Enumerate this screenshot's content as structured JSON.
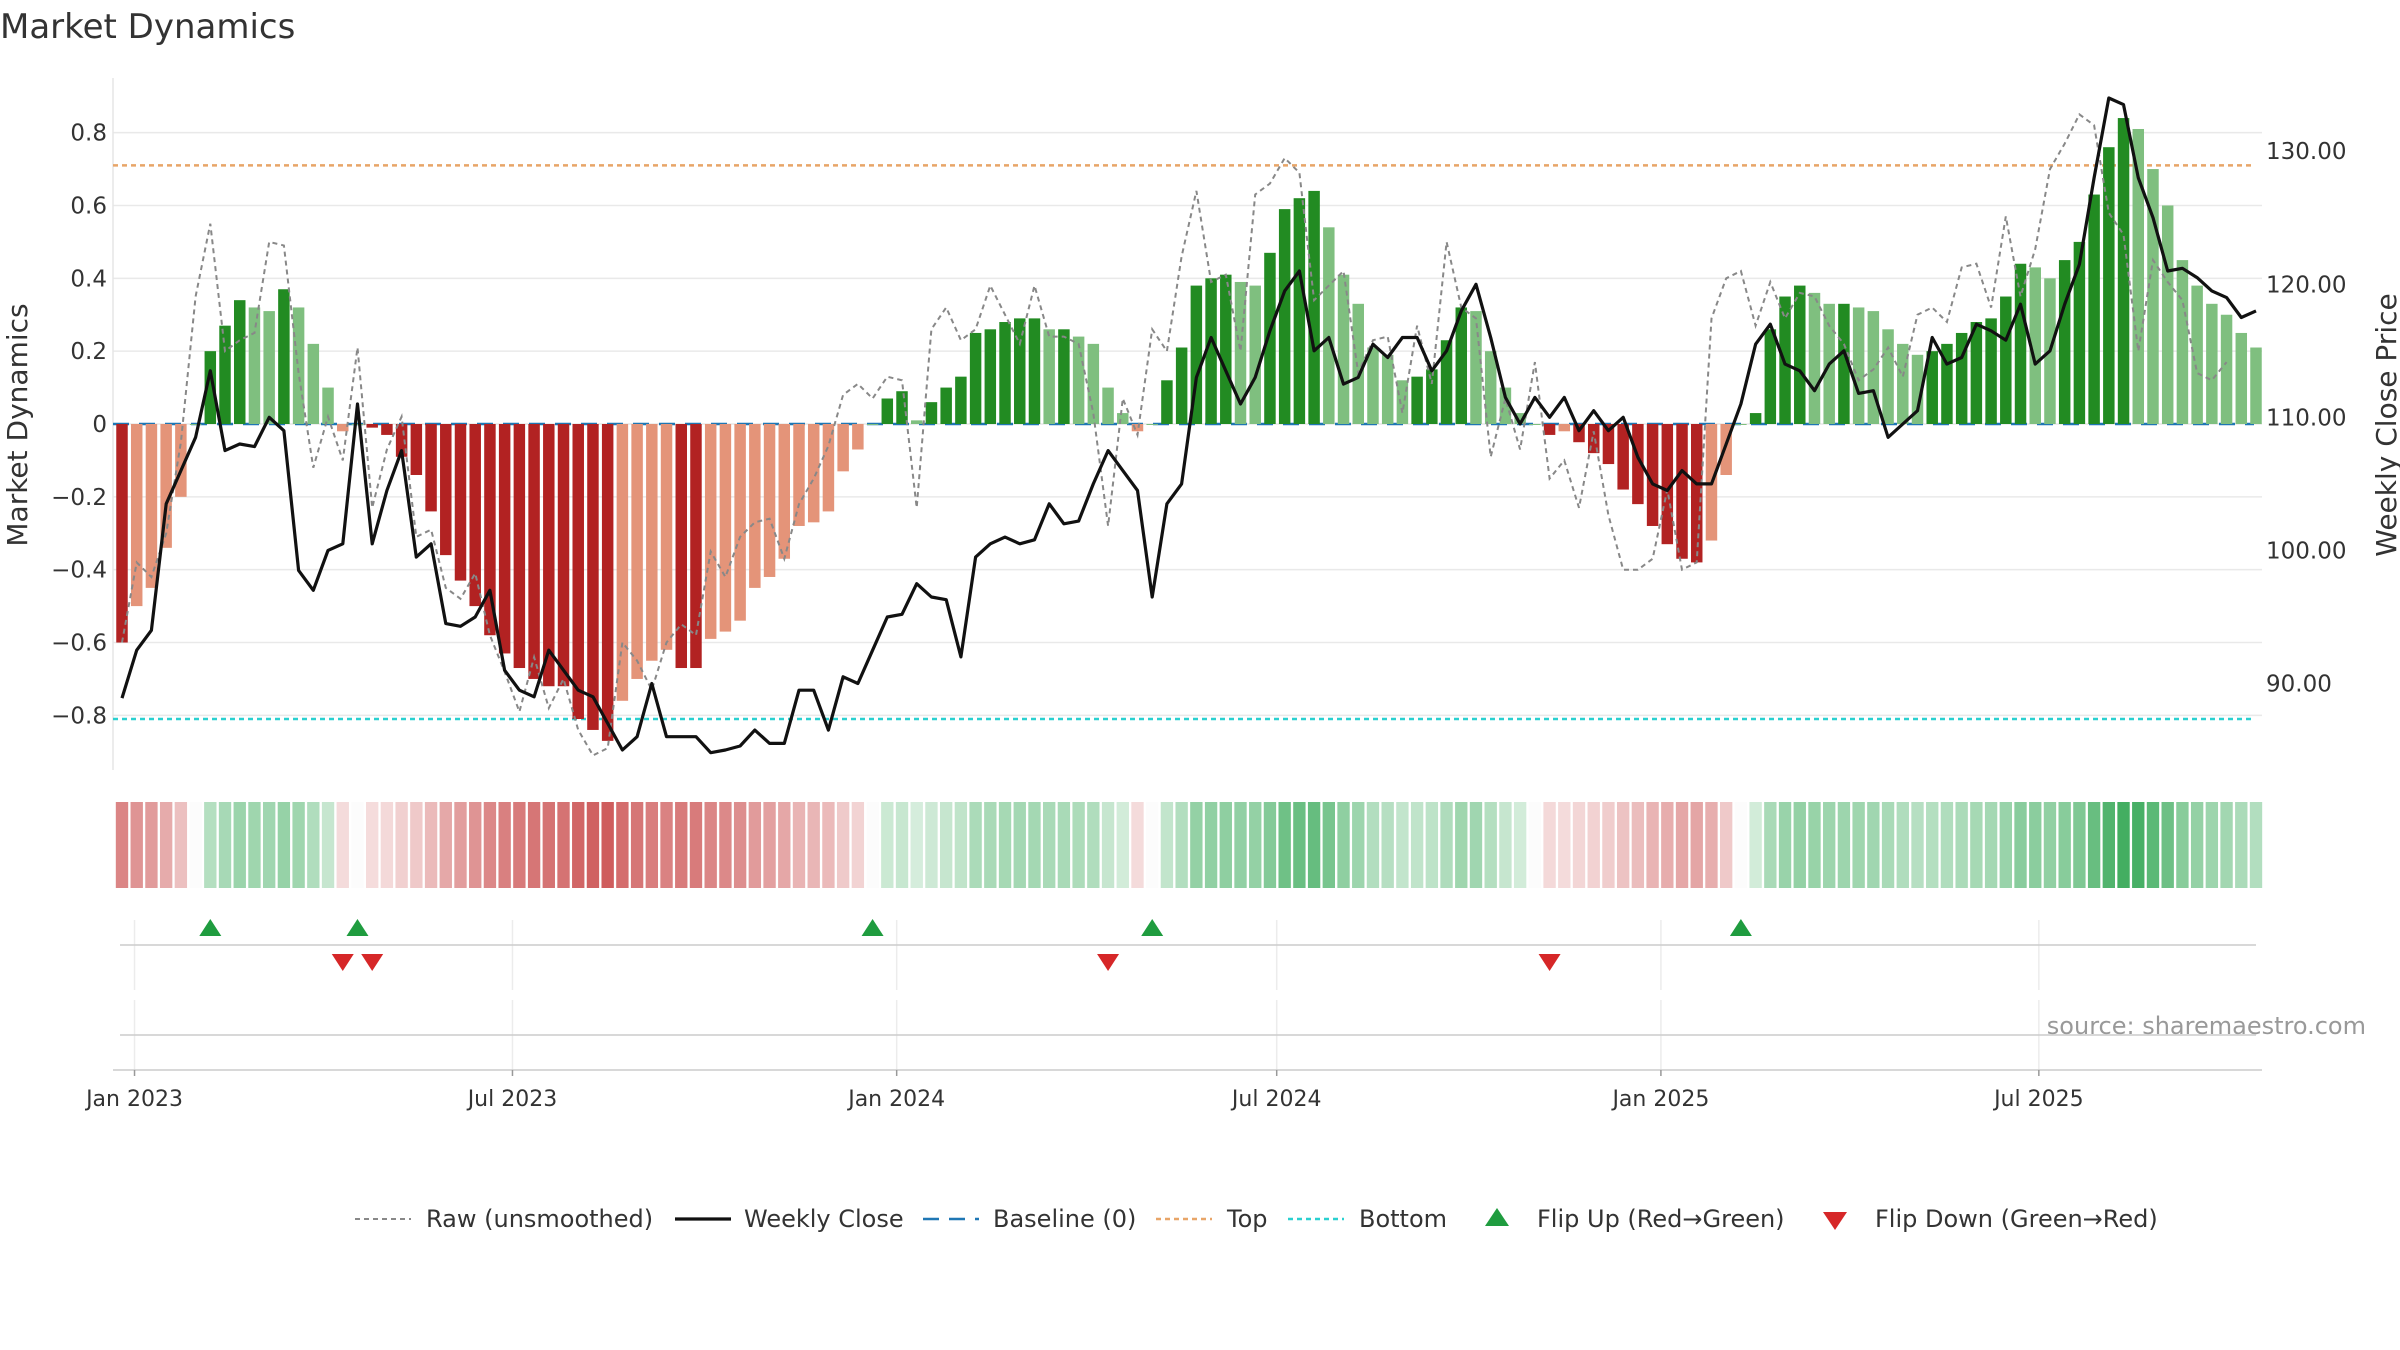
{
  "chart_data": {
    "type": "bar",
    "title": "Market Dynamics",
    "ylabel_left": "Market Dynamics",
    "ylabel_right": "Weekly Close Price",
    "source": "source: sharemaestro.com",
    "ylim_left": [
      -0.95,
      0.95
    ],
    "ylim_right": [
      83.5,
      135.5
    ],
    "yticks_left": [
      0.8,
      0.6,
      0.4,
      0.2,
      0,
      -0.2,
      -0.4,
      -0.6,
      -0.8
    ],
    "yticks_left_labels": [
      "0.8",
      "0.6",
      "0.4",
      "0.2",
      "0",
      "−0.2",
      "−0.4",
      "−0.6",
      "−0.8"
    ],
    "yticks_right": [
      130,
      120,
      110,
      100,
      90
    ],
    "yticks_right_labels": [
      "130.00",
      "120.00",
      "110.00",
      "100.00",
      "90.00"
    ],
    "x_start": "2022-12-26",
    "x_end": "2025-10-13",
    "xticks": [
      {
        "date": "2023-01-01",
        "label": "Jan 2023"
      },
      {
        "date": "2023-07-01",
        "label": "Jul 2023"
      },
      {
        "date": "2024-01-01",
        "label": "Jan 2024"
      },
      {
        "date": "2024-07-01",
        "label": "Jul 2024"
      },
      {
        "date": "2025-01-01",
        "label": "Jan 2025"
      },
      {
        "date": "2025-07-01",
        "label": "Jul 2025"
      }
    ],
    "top_level": 0.71,
    "bottom_level": -0.81,
    "baseline": 0,
    "bar_color_strong_positive": "#228b22",
    "bar_color_weak_positive": "#7fbf7f",
    "bar_color_strong_negative": "#b22222",
    "bar_color_weak_negative": "#e49479",
    "top_line_color": "#e8a568",
    "bottom_line_color": "#2ad0d0",
    "baseline_color": "#1f77b4",
    "flip_up_color": "#1f9c3f",
    "flip_down_color": "#d62728",
    "smoothed": [
      -0.6,
      -0.5,
      -0.45,
      -0.34,
      -0.2,
      0.0,
      0.2,
      0.27,
      0.34,
      0.32,
      0.31,
      0.37,
      0.32,
      0.22,
      0.1,
      -0.02,
      0.0,
      -0.01,
      -0.03,
      -0.09,
      -0.14,
      -0.24,
      -0.36,
      -0.43,
      -0.5,
      -0.58,
      -0.63,
      -0.67,
      -0.7,
      -0.72,
      -0.72,
      -0.81,
      -0.84,
      -0.87,
      -0.76,
      -0.7,
      -0.65,
      -0.62,
      -0.67,
      -0.67,
      -0.59,
      -0.57,
      -0.54,
      -0.45,
      -0.42,
      -0.37,
      -0.28,
      -0.27,
      -0.24,
      -0.13,
      -0.07,
      0.0,
      0.07,
      0.09,
      0.01,
      0.06,
      0.1,
      0.13,
      0.25,
      0.26,
      0.28,
      0.29,
      0.29,
      0.26,
      0.26,
      0.24,
      0.22,
      0.1,
      0.03,
      -0.02,
      0.0,
      0.12,
      0.21,
      0.38,
      0.4,
      0.41,
      0.39,
      0.38,
      0.47,
      0.59,
      0.62,
      0.64,
      0.54,
      0.41,
      0.33,
      0.21,
      0.19,
      0.12,
      0.13,
      0.15,
      0.23,
      0.32,
      0.31,
      0.2,
      0.1,
      0.03,
      0.0,
      -0.03,
      -0.02,
      -0.05,
      -0.08,
      -0.11,
      -0.18,
      -0.22,
      -0.28,
      -0.33,
      -0.37,
      -0.38,
      -0.32,
      -0.14,
      0.0,
      0.03,
      0.26,
      0.35,
      0.38,
      0.36,
      0.33,
      0.33,
      0.32,
      0.31,
      0.26,
      0.22,
      0.19,
      0.2,
      0.22,
      0.25,
      0.28,
      0.29,
      0.35,
      0.44,
      0.43,
      0.4,
      0.45,
      0.5,
      0.63,
      0.76,
      0.84,
      0.81,
      0.7,
      0.6,
      0.45,
      0.38,
      0.33,
      0.3,
      0.25,
      0.21
    ],
    "raw": [
      -0.6,
      -0.38,
      -0.42,
      -0.3,
      -0.05,
      0.35,
      0.55,
      0.2,
      0.23,
      0.25,
      0.5,
      0.49,
      0.14,
      -0.12,
      0.02,
      -0.1,
      0.21,
      -0.23,
      -0.07,
      0.02,
      -0.31,
      -0.29,
      -0.45,
      -0.48,
      -0.41,
      -0.58,
      -0.68,
      -0.79,
      -0.64,
      -0.78,
      -0.7,
      -0.84,
      -0.91,
      -0.89,
      -0.6,
      -0.65,
      -0.73,
      -0.6,
      -0.55,
      -0.58,
      -0.35,
      -0.42,
      -0.31,
      -0.27,
      -0.26,
      -0.37,
      -0.22,
      -0.15,
      -0.06,
      0.08,
      0.11,
      0.07,
      0.13,
      0.12,
      -0.23,
      0.26,
      0.32,
      0.23,
      0.26,
      0.38,
      0.3,
      0.22,
      0.38,
      0.24,
      0.24,
      0.22,
      0.03,
      -0.28,
      0.07,
      -0.03,
      0.26,
      0.2,
      0.46,
      0.64,
      0.39,
      0.41,
      0.2,
      0.63,
      0.66,
      0.73,
      0.69,
      0.34,
      0.38,
      0.42,
      0.14,
      0.23,
      0.24,
      0.03,
      0.27,
      0.11,
      0.5,
      0.32,
      0.29,
      -0.09,
      0.07,
      -0.07,
      0.17,
      -0.15,
      -0.1,
      -0.23,
      -0.02,
      -0.25,
      -0.4,
      -0.4,
      -0.37,
      -0.18,
      -0.4,
      -0.38,
      0.29,
      0.4,
      0.42,
      0.27,
      0.39,
      0.29,
      0.36,
      0.35,
      0.27,
      0.22,
      0.12,
      0.15,
      0.21,
      0.13,
      0.3,
      0.32,
      0.28,
      0.43,
      0.44,
      0.32,
      0.57,
      0.35,
      0.48,
      0.7,
      0.77,
      0.85,
      0.82,
      0.58,
      0.52,
      0.2,
      0.45,
      0.39,
      0.34,
      0.14,
      0.12,
      0.17
    ],
    "close": [
      88.9,
      92.5,
      94.0,
      103.5,
      106.0,
      108.5,
      113.5,
      107.5,
      108.0,
      107.8,
      110.0,
      109.0,
      98.5,
      97.0,
      100.0,
      100.5,
      111.0,
      100.5,
      104.5,
      107.5,
      99.5,
      100.5,
      94.5,
      94.3,
      95.0,
      97.0,
      91.0,
      89.5,
      89.0,
      92.5,
      91.0,
      89.5,
      89.0,
      87.0,
      85.0,
      86.0,
      90.0,
      86.0,
      86.0,
      86.0,
      84.8,
      85.0,
      85.3,
      86.5,
      85.5,
      85.5,
      89.5,
      89.5,
      86.5,
      90.5,
      90.0,
      92.5,
      95.0,
      95.2,
      97.5,
      96.5,
      96.3,
      92.0,
      99.5,
      100.5,
      101.0,
      100.5,
      100.8,
      103.5,
      102.0,
      102.2,
      105.0,
      107.5,
      106.0,
      104.5,
      96.5,
      103.5,
      105.0,
      113.0,
      116.0,
      113.5,
      111.0,
      113.0,
      116.5,
      119.5,
      121.0,
      115.0,
      116.0,
      112.5,
      113.0,
      115.5,
      114.5,
      116.0,
      116.0,
      113.5,
      115.0,
      118.0,
      120.0,
      116.0,
      111.5,
      109.5,
      111.5,
      110.0,
      111.5,
      109.0,
      110.5,
      109.0,
      110.0,
      107.0,
      105.0,
      104.5,
      106.0,
      105.0,
      105.0,
      108.0,
      111.0,
      115.5,
      117.0,
      114.0,
      113.5,
      112.0,
      114.0,
      115.0,
      111.8,
      112.0,
      108.5,
      109.5,
      110.5,
      116.0,
      114.0,
      114.5,
      117.0,
      116.5,
      115.8,
      118.5,
      114.0,
      115.0,
      118.5,
      121.5,
      128.0,
      134.0,
      133.5,
      128.0,
      125.0,
      121.0,
      121.2,
      120.5,
      119.5,
      119.0,
      117.5,
      118.0
    ],
    "heat_strips": [
      -0.6,
      -0.5,
      -0.45,
      -0.34,
      -0.2,
      0.0,
      0.2,
      0.27,
      0.34,
      0.32,
      0.31,
      0.37,
      0.32,
      0.22,
      0.1,
      -0.02,
      0.0,
      -0.01,
      -0.03,
      -0.09,
      -0.14,
      -0.24,
      -0.36,
      -0.43,
      -0.5,
      -0.58,
      -0.63,
      -0.67,
      -0.7,
      -0.72,
      -0.72,
      -0.81,
      -0.84,
      -0.87,
      -0.76,
      -0.7,
      -0.65,
      -0.62,
      -0.67,
      -0.67,
      -0.59,
      -0.57,
      -0.54,
      -0.45,
      -0.42,
      -0.37,
      -0.28,
      -0.27,
      -0.24,
      -0.13,
      -0.07,
      0.0,
      0.07,
      0.09,
      0.01,
      0.06,
      0.1,
      0.13,
      0.25,
      0.26,
      0.28,
      0.29,
      0.29,
      0.26,
      0.26,
      0.24,
      0.22,
      0.1,
      0.03,
      -0.02,
      0.0,
      0.12,
      0.21,
      0.38,
      0.4,
      0.41,
      0.39,
      0.38,
      0.47,
      0.59,
      0.62,
      0.64,
      0.54,
      0.41,
      0.33,
      0.21,
      0.19,
      0.12,
      0.13,
      0.15,
      0.23,
      0.32,
      0.31,
      0.2,
      0.1,
      0.03,
      0.0,
      -0.03,
      -0.02,
      -0.05,
      -0.08,
      -0.11,
      -0.18,
      -0.22,
      -0.28,
      -0.33,
      -0.37,
      -0.38,
      -0.32,
      -0.14,
      0.0,
      0.03,
      0.26,
      0.35,
      0.38,
      0.36,
      0.33,
      0.33,
      0.32,
      0.31,
      0.26,
      0.22,
      0.19,
      0.2,
      0.22,
      0.25,
      0.28,
      0.29,
      0.35,
      0.44,
      0.43,
      0.4,
      0.45,
      0.5,
      0.63,
      0.76,
      0.84,
      0.81,
      0.7,
      0.6,
      0.45,
      0.38,
      0.33,
      0.3,
      0.25,
      0.21
    ],
    "flip_up_weeks": [
      6,
      16,
      51,
      70,
      110
    ],
    "flip_down_weeks": [
      15,
      17,
      67,
      97
    ],
    "legend": [
      {
        "label": "Raw (unsmoothed)",
        "style": "dashed-gray"
      },
      {
        "label": "Weekly Close",
        "style": "solid-black"
      },
      {
        "label": "Baseline (0)",
        "style": "dashed-blue"
      },
      {
        "label": "Top",
        "style": "dotted-orange"
      },
      {
        "label": "Bottom",
        "style": "dotted-cyan"
      },
      {
        "label": "Flip Up (Red→Green)",
        "style": "triangle-up-green"
      },
      {
        "label": "Flip Down (Green→Red)",
        "style": "triangle-down-red"
      }
    ],
    "legend_position": "bottom-center",
    "grid": true
  }
}
